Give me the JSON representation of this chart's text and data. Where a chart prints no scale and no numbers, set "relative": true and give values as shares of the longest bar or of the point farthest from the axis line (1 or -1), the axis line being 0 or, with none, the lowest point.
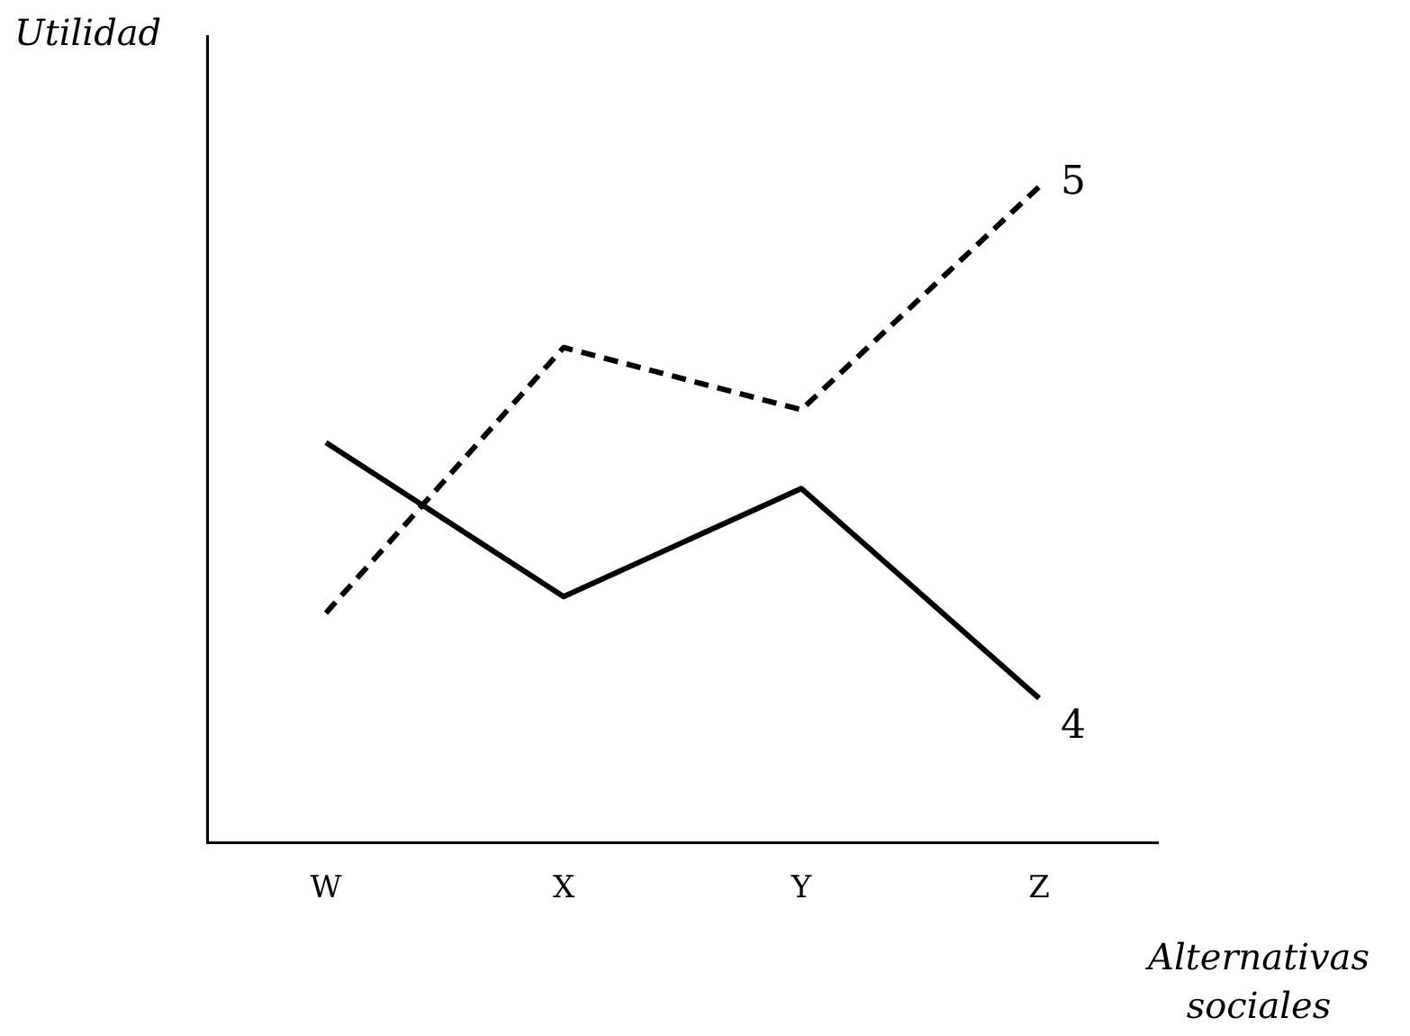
{
  "chart_data": {
    "type": "line",
    "relative": true,
    "ylabel": "Utilidad",
    "xlabel": "Alternativas sociales",
    "categories": [
      "W",
      "X",
      "Y",
      "Z"
    ],
    "grid": false,
    "legend": false,
    "marker": "none",
    "series": [
      {
        "name": "5",
        "color": "#000000",
        "line_style": "dashed",
        "values": [
          0.35,
          0.755,
          0.66,
          1
        ]
      },
      {
        "name": "4",
        "color": "#000000",
        "line_style": "solid",
        "values": [
          0.61,
          0.375,
          0.54,
          0.22
        ]
      }
    ]
  }
}
